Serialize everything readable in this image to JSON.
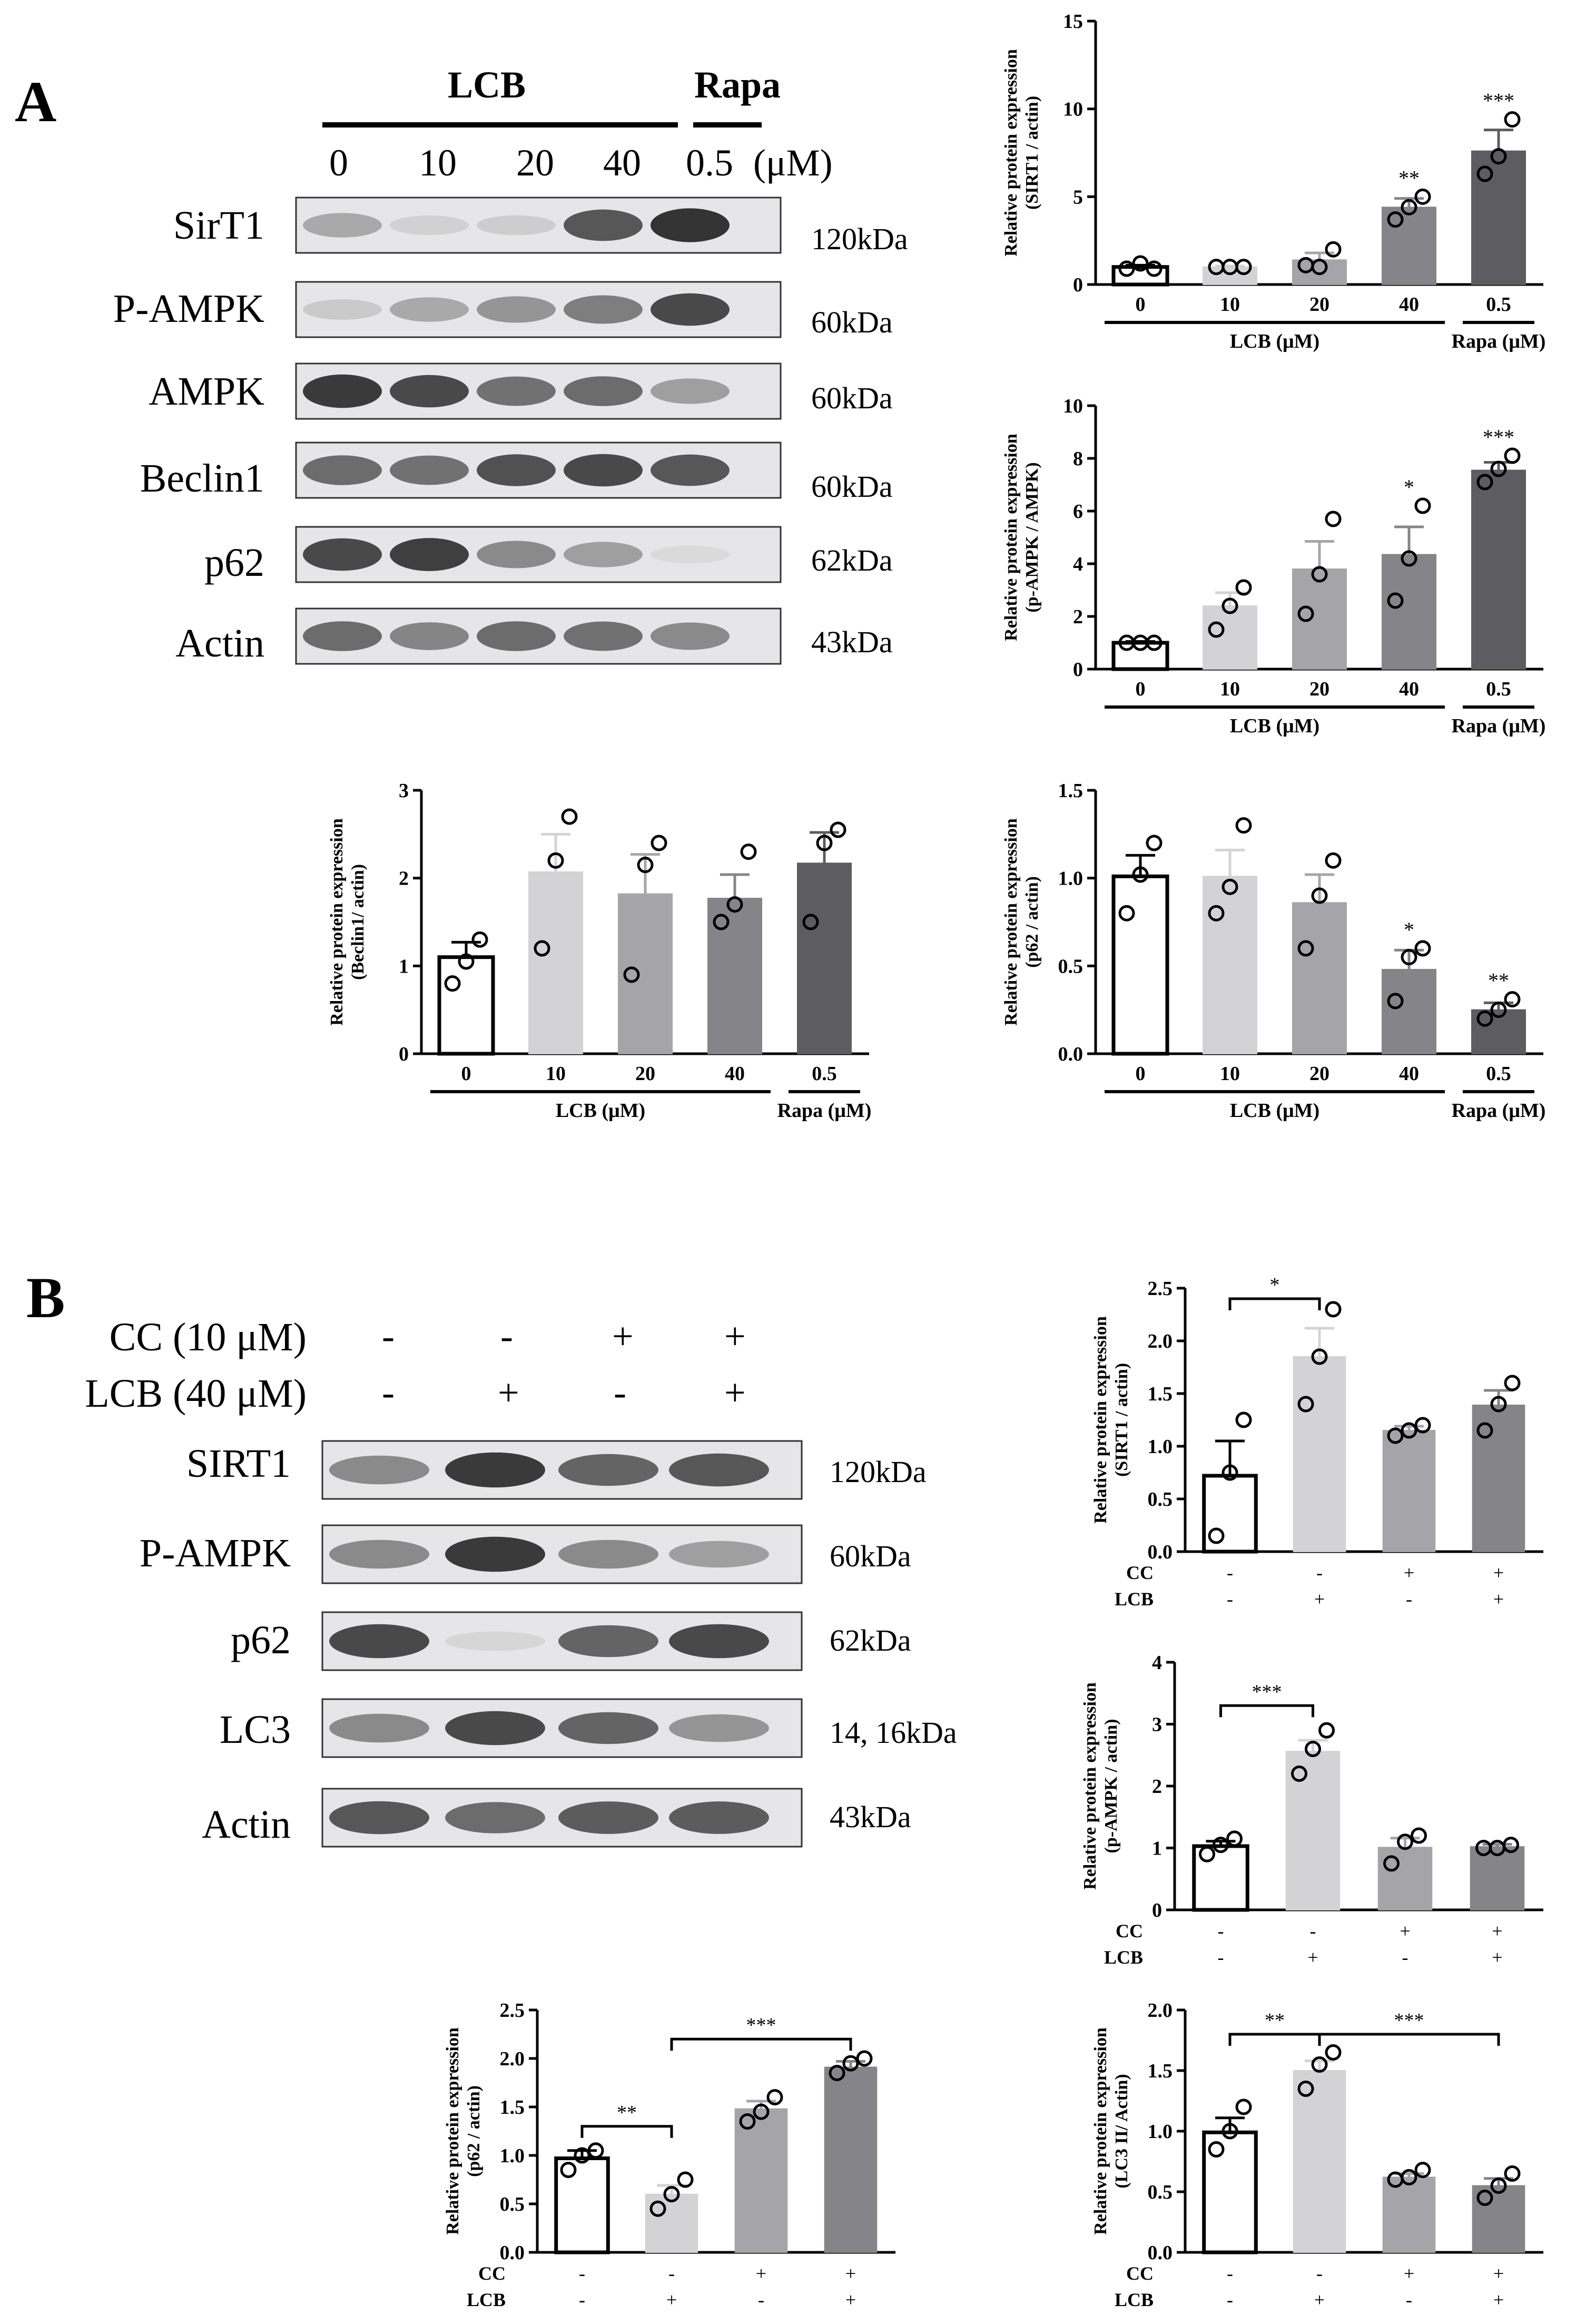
{
  "panel_a": {
    "label": "A",
    "group1": "LCB",
    "group2": "Rapa",
    "lanes": [
      "0",
      "10",
      "20",
      "40",
      "0.5"
    ],
    "unit": "(μM)",
    "proteins": [
      {
        "name": "SirT1",
        "kda": "120kDa"
      },
      {
        "name": "P-AMPK",
        "kda": "60kDa"
      },
      {
        "name": "AMPK",
        "kda": "60kDa"
      },
      {
        "name": "Beclin1",
        "kda": "60kDa"
      },
      {
        "name": "p62",
        "kda": "62kDa"
      },
      {
        "name": "Actin",
        "kda": "43kDa"
      }
    ],
    "band_intensity": [
      [
        0.45,
        0.2,
        0.22,
        0.8,
        0.92
      ],
      [
        0.25,
        0.45,
        0.55,
        0.65,
        0.85
      ],
      [
        0.9,
        0.85,
        0.7,
        0.72,
        0.5
      ],
      [
        0.72,
        0.7,
        0.82,
        0.85,
        0.8
      ],
      [
        0.85,
        0.88,
        0.6,
        0.5,
        0.12
      ],
      [
        0.72,
        0.62,
        0.72,
        0.7,
        0.6
      ]
    ]
  },
  "panel_b": {
    "label": "B",
    "conditions": [
      {
        "name": "CC (10 μM)",
        "signs": [
          "-",
          "-",
          "+",
          "+"
        ]
      },
      {
        "name": "LCB (40 μM)",
        "signs": [
          "-",
          "+",
          "-",
          "+"
        ]
      }
    ],
    "proteins": [
      {
        "name": "SIRT1",
        "kda": "120kDa"
      },
      {
        "name": "P-AMPK",
        "kda": "60kDa"
      },
      {
        "name": "p62",
        "kda": "62kDa"
      },
      {
        "name": "LC3",
        "kda": "14, 16kDa"
      },
      {
        "name": "Actin",
        "kda": "43kDa"
      }
    ],
    "band_intensity": [
      [
        0.6,
        0.9,
        0.75,
        0.8
      ],
      [
        0.6,
        0.9,
        0.6,
        0.5
      ],
      [
        0.85,
        0.15,
        0.75,
        0.85
      ],
      [
        0.6,
        0.85,
        0.75,
        0.55
      ],
      [
        0.8,
        0.72,
        0.78,
        0.78
      ]
    ]
  },
  "colors": {
    "bars": [
      "#ffffff",
      "#d3d3d5",
      "#a5a5a9",
      "#858589",
      "#5d5d61"
    ],
    "bars_b": [
      "#ffffff",
      "#d3d3d5",
      "#a5a5a9",
      "#858589"
    ]
  },
  "chart_data": [
    {
      "type": "bar",
      "id": "a_sirt1",
      "ylabel": [
        "Relative protein expression",
        "(SIRT1 / actin)"
      ],
      "ylim": [
        0,
        15
      ],
      "yticks": [
        "0",
        "5",
        "10",
        "15"
      ],
      "categories": [
        "0",
        "10",
        "20",
        "40",
        "0.5"
      ],
      "values": [
        1.0,
        1.0,
        1.4,
        4.4,
        7.6
      ],
      "sem": [
        0.1,
        0.05,
        0.4,
        0.5,
        1.2
      ],
      "points": [
        [
          0.9,
          1.2,
          0.9
        ],
        [
          1.0,
          1.0,
          1.0
        ],
        [
          1.1,
          1.0,
          2.0
        ],
        [
          3.7,
          4.4,
          5.0
        ],
        [
          6.3,
          7.3,
          9.4
        ]
      ],
      "stars": [
        "",
        "",
        "",
        "**",
        "***"
      ],
      "group_labels": [
        {
          "text": "LCB (μM)",
          "from": 0,
          "to": 3
        },
        {
          "text": "Rapa (μM)",
          "from": 4,
          "to": 4
        }
      ]
    },
    {
      "type": "bar",
      "id": "a_pampk",
      "ylabel": [
        "Relative protein expression",
        "(p-AMPK / AMPK)"
      ],
      "ylim": [
        0,
        10
      ],
      "yticks": [
        "0",
        "2",
        "4",
        "6",
        "8",
        "10"
      ],
      "categories": [
        "0",
        "10",
        "20",
        "40",
        "0.5"
      ],
      "values": [
        1.0,
        2.4,
        3.8,
        4.35,
        7.55
      ],
      "sem": [
        0.05,
        0.5,
        1.05,
        1.05,
        0.3
      ],
      "points": [
        [
          1.0,
          1.0,
          1.0
        ],
        [
          1.5,
          2.4,
          3.1
        ],
        [
          2.1,
          3.6,
          5.7
        ],
        [
          2.6,
          4.2,
          6.2
        ],
        [
          7.1,
          7.6,
          8.1
        ]
      ],
      "stars": [
        "",
        "",
        "",
        "*",
        "***"
      ],
      "group_labels": [
        {
          "text": "LCB (μM)",
          "from": 0,
          "to": 3
        },
        {
          "text": "Rapa (μM)",
          "from": 4,
          "to": 4
        }
      ]
    },
    {
      "type": "bar",
      "id": "a_beclin1",
      "ylabel": [
        "Relative protein expression",
        "(Beclin1/ actin)"
      ],
      "ylim": [
        0,
        3
      ],
      "yticks": [
        "0",
        "1",
        "2",
        "3"
      ],
      "categories": [
        "0",
        "10",
        "20",
        "40",
        "0.5"
      ],
      "values": [
        1.1,
        2.07,
        1.82,
        1.77,
        2.17
      ],
      "sem": [
        0.17,
        0.43,
        0.45,
        0.27,
        0.35
      ],
      "points": [
        [
          0.8,
          1.05,
          1.3
        ],
        [
          1.2,
          2.2,
          2.7
        ],
        [
          0.9,
          2.15,
          2.4
        ],
        [
          1.5,
          1.7,
          2.3
        ],
        [
          1.5,
          2.4,
          2.55
        ]
      ],
      "stars": [
        "",
        "",
        "",
        "",
        ""
      ],
      "group_labels": [
        {
          "text": "LCB (μM)",
          "from": 0,
          "to": 3
        },
        {
          "text": "Rapa (μM)",
          "from": 4,
          "to": 4
        }
      ]
    },
    {
      "type": "bar",
      "id": "a_p62",
      "ylabel": [
        "Relative protein expression",
        "(p62 / actin)"
      ],
      "ylim": [
        0,
        1.5
      ],
      "yticks": [
        "0.0",
        "0.5",
        "1.0",
        "1.5"
      ],
      "categories": [
        "0",
        "10",
        "20",
        "40",
        "0.5"
      ],
      "values": [
        1.01,
        1.01,
        0.86,
        0.48,
        0.25
      ],
      "sem": [
        0.12,
        0.15,
        0.16,
        0.11,
        0.04
      ],
      "points": [
        [
          0.8,
          1.02,
          1.2
        ],
        [
          0.8,
          0.95,
          1.3
        ],
        [
          0.6,
          0.9,
          1.1
        ],
        [
          0.3,
          0.55,
          0.6
        ],
        [
          0.2,
          0.25,
          0.31
        ]
      ],
      "stars": [
        "",
        "",
        "",
        "*",
        "**"
      ],
      "group_labels": [
        {
          "text": "LCB (μM)",
          "from": 0,
          "to": 3
        },
        {
          "text": "Rapa (μM)",
          "from": 4,
          "to": 4
        }
      ]
    },
    {
      "type": "bar",
      "id": "b_sirt1",
      "ylabel": [
        "Relative protein expression",
        "(SIRT1 / actin)"
      ],
      "ylim": [
        0,
        2.5
      ],
      "yticks": [
        "0.0",
        "0.5",
        "1.0",
        "1.5",
        "2.0",
        "2.5"
      ],
      "values": [
        0.72,
        1.85,
        1.15,
        1.39
      ],
      "sem": [
        0.33,
        0.27,
        0.04,
        0.14
      ],
      "points": [
        [
          0.15,
          0.75,
          1.25
        ],
        [
          1.4,
          1.85,
          2.3
        ],
        [
          1.1,
          1.15,
          1.2
        ],
        [
          1.15,
          1.4,
          1.6
        ]
      ],
      "cc": [
        "-",
        "-",
        "+",
        "+"
      ],
      "lcb": [
        "-",
        "+",
        "-",
        "+"
      ],
      "sig": [
        {
          "from": 0,
          "to": 1,
          "y": 2.4,
          "label": "*"
        }
      ]
    },
    {
      "type": "bar",
      "id": "b_pampk",
      "ylabel": [
        "Relative protein expression",
        "(p-AMPK / actin)"
      ],
      "ylim": [
        0,
        4
      ],
      "yticks": [
        "0",
        "1",
        "2",
        "3",
        "4"
      ],
      "values": [
        1.03,
        2.56,
        1.01,
        1.02
      ],
      "sem": [
        0.08,
        0.18,
        0.15,
        0.04
      ],
      "points": [
        [
          0.9,
          1.05,
          1.15
        ],
        [
          2.2,
          2.6,
          2.9
        ],
        [
          0.75,
          1.1,
          1.2
        ],
        [
          1.0,
          1.0,
          1.05
        ]
      ],
      "cc": [
        "-",
        "-",
        "+",
        "+"
      ],
      "lcb": [
        "-",
        "+",
        "-",
        "+"
      ],
      "sig": [
        {
          "from": 0,
          "to": 1,
          "y": 3.3,
          "label": "***"
        }
      ]
    },
    {
      "type": "bar",
      "id": "b_p62",
      "ylabel": [
        "Relative protein expression",
        "(p62 / actin)"
      ],
      "ylim": [
        0,
        2.5
      ],
      "yticks": [
        "0.0",
        "0.5",
        "1.0",
        "1.5",
        "2.0",
        "2.5"
      ],
      "values": [
        0.97,
        0.6,
        1.48,
        1.91
      ],
      "sem": [
        0.08,
        0.09,
        0.08,
        0.06
      ],
      "points": [
        [
          0.85,
          1.0,
          1.05
        ],
        [
          0.45,
          0.6,
          0.75
        ],
        [
          1.35,
          1.45,
          1.6
        ],
        [
          1.85,
          1.95,
          2.0
        ]
      ],
      "cc": [
        "-",
        "-",
        "+",
        "+"
      ],
      "lcb": [
        "-",
        "+",
        "-",
        "+"
      ],
      "sig": [
        {
          "from": 0,
          "to": 1,
          "y": 1.3,
          "label": "**"
        },
        {
          "from": 1,
          "to": 3,
          "y": 2.2,
          "label": "***"
        }
      ]
    },
    {
      "type": "bar",
      "id": "b_lc3",
      "ylabel": [
        "Relative protein expression",
        "(LC3 II/ Actin)"
      ],
      "ylim": [
        0,
        2.0
      ],
      "yticks": [
        "0.0",
        "0.5",
        "1.0",
        "1.5",
        "2.0"
      ],
      "values": [
        0.99,
        1.5,
        0.62,
        0.55
      ],
      "sem": [
        0.12,
        0.08,
        0.03,
        0.06
      ],
      "points": [
        [
          0.85,
          1.0,
          1.2
        ],
        [
          1.35,
          1.55,
          1.65
        ],
        [
          0.6,
          0.62,
          0.68
        ],
        [
          0.45,
          0.55,
          0.65
        ]
      ],
      "cc": [
        "-",
        "-",
        "+",
        "+"
      ],
      "lcb": [
        "-",
        "+",
        "-",
        "+"
      ],
      "sig": [
        {
          "from": 0,
          "to": 1,
          "y": 1.8,
          "label": "**"
        },
        {
          "from": 1,
          "to": 3,
          "y": 1.8,
          "label": "***"
        }
      ]
    }
  ],
  "labels": {
    "cc": "CC",
    "lcb": "LCB"
  }
}
